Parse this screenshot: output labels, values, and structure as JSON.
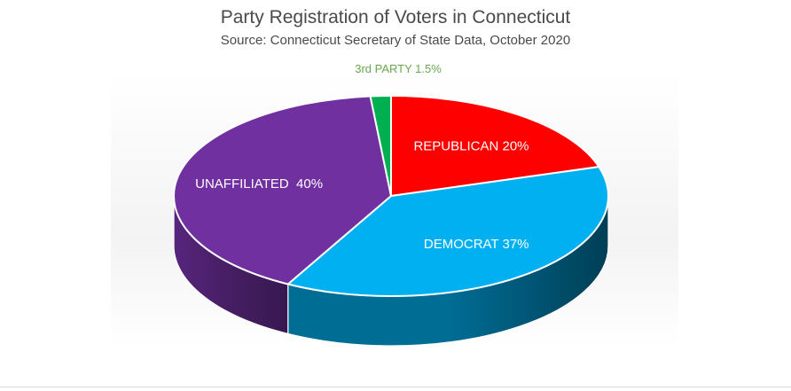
{
  "chart_data": {
    "type": "pie",
    "style": "3d",
    "title": "Party Registration of Voters in Connecticut",
    "subtitle": "Source: Connecticut Secretary of State Data, October 2020",
    "slices": [
      {
        "name": "REPUBLICAN",
        "value": 20,
        "label": "REPUBLICAN 20%",
        "color": "#ff0000"
      },
      {
        "name": "DEMOCRAT",
        "value": 37,
        "label": "DEMOCRAT 37%",
        "color": "#00b0f0"
      },
      {
        "name": "UNAFFILIATED",
        "value": 40,
        "label": "UNAFFILIATED  40%",
        "color": "#7030a0"
      },
      {
        "name": "3rd PARTY",
        "value": 1.5,
        "label": "3rd PARTY 1.5%",
        "color": "#00b050"
      }
    ]
  }
}
